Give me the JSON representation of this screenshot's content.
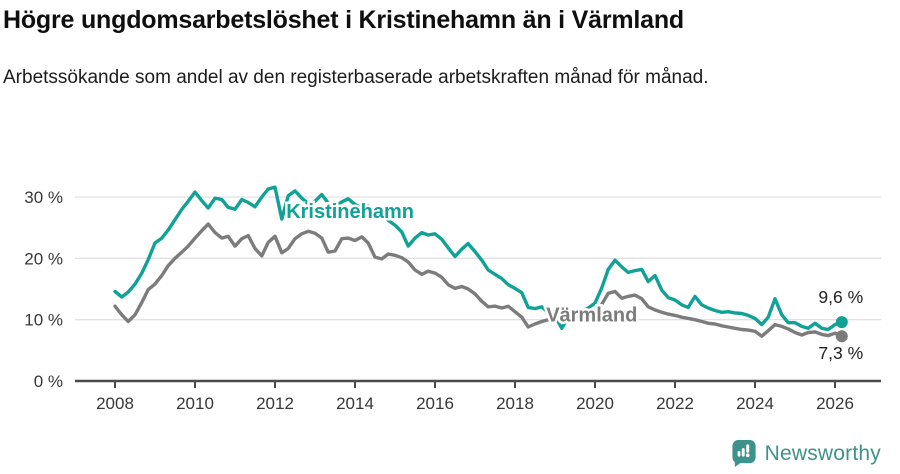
{
  "title": "Högre ungdomsarbetslöshet i Kristinehamn än i Värmland",
  "subtitle": "Arbetssökande som andel av den registerbaserade arbetskraften månad för månad.",
  "footer": {
    "brand": "Newsworthy",
    "logo_icon": "newsworthy-speech-bubble-chart-icon"
  },
  "colors": {
    "kristinehamn": "#10a296",
    "varmland": "#7c7c7c",
    "grid": "#e2e2e2",
    "axis": "#4a4a4a",
    "tick_text": "#383838",
    "annotation_text": "#1f1f1f",
    "brand_teal": "#3f918b"
  },
  "chart_data": {
    "type": "line",
    "title": "Högre ungdomsarbetslöshet i Kristinehamn än i Värmland",
    "subtitle": "Arbetssökande som andel av den registerbaserade arbetskraften månad för månad.",
    "xlabel": "",
    "ylabel": "",
    "ylim": [
      0,
      33
    ],
    "grid": "horizontal",
    "legend_position": "inline-labels",
    "x": [
      2008,
      2008.17,
      2008.33,
      2008.5,
      2008.67,
      2008.83,
      2009,
      2009.17,
      2009.33,
      2009.5,
      2009.67,
      2009.83,
      2010,
      2010.17,
      2010.33,
      2010.5,
      2010.67,
      2010.83,
      2011,
      2011.17,
      2011.33,
      2011.5,
      2011.67,
      2011.83,
      2012,
      2012.17,
      2012.33,
      2012.5,
      2012.67,
      2012.83,
      2013,
      2013.17,
      2013.33,
      2013.5,
      2013.67,
      2013.83,
      2014,
      2014.17,
      2014.33,
      2014.5,
      2014.67,
      2014.83,
      2015,
      2015.17,
      2015.33,
      2015.5,
      2015.67,
      2015.83,
      2016,
      2016.17,
      2016.33,
      2016.5,
      2016.67,
      2016.83,
      2017,
      2017.17,
      2017.33,
      2017.5,
      2017.67,
      2017.83,
      2018,
      2018.17,
      2018.33,
      2018.5,
      2018.67,
      2018.83,
      2019,
      2019.17,
      2019.33,
      2019.5,
      2019.67,
      2019.83,
      2020,
      2020.17,
      2020.33,
      2020.5,
      2020.67,
      2020.83,
      2021,
      2021.17,
      2021.33,
      2021.5,
      2021.67,
      2021.83,
      2022,
      2022.17,
      2022.33,
      2022.5,
      2022.67,
      2022.83,
      2023,
      2023.17,
      2023.33,
      2023.5,
      2023.67,
      2023.83,
      2024,
      2024.17,
      2024.33,
      2024.5,
      2024.67,
      2024.83,
      2025,
      2025.17,
      2025.33,
      2025.5,
      2025.67,
      2025.83,
      2026,
      2026.17
    ],
    "series": [
      {
        "name": "Kristinehamn",
        "color": "#10a296",
        "end_value": 9.6,
        "end_value_label": "9,6 %",
        "end_label_position": "above",
        "inline_label": {
          "x": 2012.28,
          "y": 27.4
        },
        "values": [
          14.6,
          13.7,
          14.5,
          15.8,
          17.6,
          19.8,
          22.5,
          23.3,
          24.6,
          26.3,
          28.0,
          29.3,
          30.8,
          29.4,
          28.2,
          29.8,
          29.6,
          28.3,
          28.0,
          29.6,
          29.1,
          28.4,
          30.0,
          31.3,
          31.6,
          26.4,
          30.2,
          31.0,
          29.8,
          28.9,
          29.3,
          30.4,
          29.0,
          28.4,
          29.2,
          29.7,
          28.8,
          28.2,
          28.6,
          27.8,
          27.0,
          26.2,
          25.4,
          24.3,
          22.0,
          23.3,
          24.2,
          23.8,
          24.0,
          23.1,
          21.7,
          20.3,
          21.5,
          22.4,
          21.1,
          19.7,
          18.1,
          17.4,
          16.7,
          15.7,
          15.1,
          14.4,
          12.0,
          11.8,
          12.1,
          11.2,
          10.6,
          8.6,
          10.4,
          11.0,
          11.4,
          11.9,
          12.7,
          15.2,
          18.2,
          19.7,
          18.6,
          17.7,
          18.0,
          18.2,
          16.2,
          17.2,
          14.8,
          13.6,
          13.2,
          12.4,
          12.0,
          13.8,
          12.4,
          11.9,
          11.5,
          11.2,
          11.3,
          11.1,
          11.0,
          10.7,
          10.2,
          9.2,
          10.4,
          13.4,
          10.8,
          9.5,
          9.5,
          8.9,
          8.6,
          9.4,
          8.6,
          8.4,
          9.2,
          9.6
        ]
      },
      {
        "name": "Värmland",
        "color": "#7c7c7c",
        "end_value": 7.3,
        "end_value_label": "7,3 %",
        "end_label_position": "below",
        "inline_label": {
          "x": 2018.78,
          "y": 10.6
        },
        "values": [
          12.2,
          10.8,
          9.7,
          10.8,
          12.8,
          14.9,
          15.8,
          17.2,
          18.8,
          20.0,
          21.0,
          22.0,
          23.3,
          24.5,
          25.6,
          24.2,
          23.3,
          23.6,
          22.0,
          23.2,
          23.7,
          21.6,
          20.4,
          22.6,
          23.6,
          20.9,
          21.6,
          23.2,
          24.0,
          24.4,
          24.1,
          23.3,
          21.0,
          21.2,
          23.2,
          23.3,
          22.9,
          23.5,
          22.5,
          20.2,
          19.9,
          20.7,
          20.5,
          20.1,
          19.4,
          18.1,
          17.4,
          17.9,
          17.6,
          16.9,
          15.7,
          15.1,
          15.4,
          15.0,
          14.2,
          13.0,
          12.1,
          12.2,
          11.9,
          12.2,
          11.3,
          10.4,
          8.8,
          9.3,
          9.7,
          10.0,
          10.1,
          10.2,
          10.3,
          10.4,
          10.2,
          10.0,
          10.3,
          12.5,
          14.3,
          14.6,
          13.5,
          13.8,
          14.0,
          13.4,
          12.1,
          11.6,
          11.2,
          10.9,
          10.7,
          10.4,
          10.2,
          10.0,
          9.7,
          9.4,
          9.3,
          9.0,
          8.8,
          8.6,
          8.4,
          8.3,
          8.1,
          7.3,
          8.2,
          9.2,
          8.9,
          8.5,
          7.9,
          7.5,
          7.9,
          8.0,
          7.6,
          7.4,
          7.8,
          7.3
        ]
      }
    ],
    "yticks": [
      {
        "label": "0 %",
        "value": 0
      },
      {
        "label": "10 %",
        "value": 10
      },
      {
        "label": "20 %",
        "value": 20
      },
      {
        "label": "30 %",
        "value": 30
      }
    ],
    "xticks": [
      {
        "label": "2008",
        "value": 2008
      },
      {
        "label": "2010",
        "value": 2010
      },
      {
        "label": "2012",
        "value": 2012
      },
      {
        "label": "2014",
        "value": 2014
      },
      {
        "label": "2016",
        "value": 2016
      },
      {
        "label": "2018",
        "value": 2018
      },
      {
        "label": "2020",
        "value": 2020
      },
      {
        "label": "2022",
        "value": 2022
      },
      {
        "label": "2024",
        "value": 2024
      },
      {
        "label": "2026",
        "value": 2026
      }
    ]
  }
}
